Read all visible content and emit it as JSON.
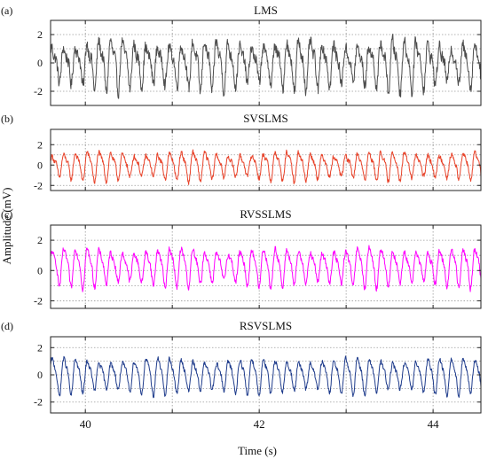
{
  "figure": {
    "ylabel": "Amplitude (mV)",
    "xlabel": "Time (s)"
  },
  "chart_data": [
    {
      "panel_label": "(a)",
      "title": "LMS",
      "type": "line",
      "color": "#4d4d4d",
      "xlim": [
        39.6,
        44.55
      ],
      "ylim": [
        -3,
        3
      ],
      "yticks": [
        "2",
        "0",
        "-2"
      ],
      "grid": true,
      "signal": {
        "freq_hz": 7.4,
        "amplitude_mv": 1.3,
        "harmonic_mv": 0.55,
        "noise_mv": 0.45,
        "offset_mv": 0.0
      }
    },
    {
      "panel_label": "(b)",
      "title": "SVSLMS",
      "type": "line",
      "color": "#e8432a",
      "xlim": [
        39.6,
        44.55
      ],
      "ylim": [
        -2.5,
        3.5
      ],
      "yticks": [
        "2",
        "0",
        "-2"
      ],
      "grid": true,
      "signal": {
        "freq_hz": 7.4,
        "amplitude_mv": 1.1,
        "harmonic_mv": 0.35,
        "noise_mv": 0.25,
        "offset_mv": 0.0
      }
    },
    {
      "panel_label": "(c)",
      "title": "RVSSLMS",
      "type": "line",
      "color": "#ff00ff",
      "xlim": [
        39.6,
        44.55
      ],
      "ylim": [
        -2.5,
        3.0
      ],
      "yticks": [
        "2",
        "0",
        "-2"
      ],
      "grid": true,
      "signal": {
        "freq_hz": 7.4,
        "amplitude_mv": 1.0,
        "harmonic_mv": 0.3,
        "noise_mv": 0.2,
        "offset_mv": 0.3
      }
    },
    {
      "panel_label": "(d)",
      "title": "RSVSLMS",
      "type": "line",
      "color": "#1f3c8c",
      "xlim": [
        39.6,
        44.55
      ],
      "ylim": [
        -2.8,
        2.8
      ],
      "yticks": [
        "2",
        "0",
        "-2"
      ],
      "xticks": [
        "40",
        "42",
        "44"
      ],
      "grid": true,
      "signal": {
        "freq_hz": 7.4,
        "amplitude_mv": 1.05,
        "harmonic_mv": 0.3,
        "noise_mv": 0.18,
        "offset_mv": 0.0
      }
    }
  ]
}
